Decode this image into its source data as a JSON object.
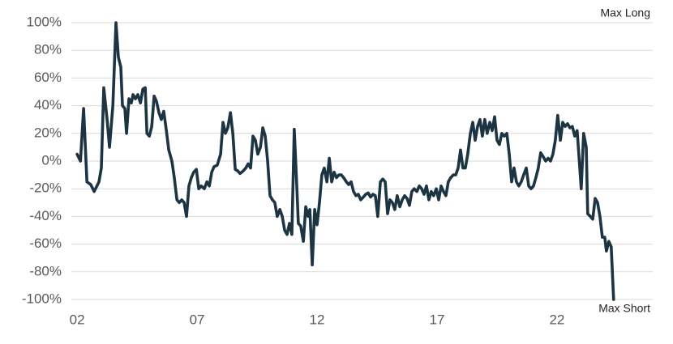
{
  "chart_data": {
    "type": "line",
    "color": "#1d3443",
    "grid": true,
    "annotations": [
      "Max Long",
      "Max Short"
    ],
    "xlim": [
      1.76,
      25.99
    ],
    "xticks": [
      {
        "value": 2,
        "label": "02"
      },
      {
        "value": 7,
        "label": "07"
      },
      12,
      17,
      22
    ],
    "ylim": [
      -100,
      100
    ],
    "yticks": [
      {
        "value": -100,
        "label": "-100%"
      },
      {
        "value": -80,
        "label": "-80%"
      },
      {
        "value": -60,
        "label": "-60%"
      },
      {
        "value": -40,
        "label": "-40%"
      },
      {
        "value": -20,
        "label": "-20%"
      },
      {
        "value": 0,
        "label": "0%"
      },
      {
        "value": 20,
        "label": "20%"
      },
      {
        "value": 40,
        "label": "40%"
      },
      {
        "value": 60,
        "label": "60%"
      },
      {
        "value": 80,
        "label": "80%"
      },
      {
        "value": 100,
        "label": "100%"
      }
    ],
    "x": [
      2.0,
      2.14,
      2.27,
      2.41,
      2.57,
      2.71,
      2.91,
      3.01,
      3.11,
      3.25,
      3.35,
      3.49,
      3.62,
      3.72,
      3.82,
      3.89,
      3.99,
      4.06,
      4.16,
      4.26,
      4.33,
      4.43,
      4.53,
      4.64,
      4.74,
      4.84,
      4.91,
      5.01,
      5.11,
      5.21,
      5.31,
      5.41,
      5.51,
      5.61,
      5.72,
      5.82,
      5.95,
      6.05,
      6.16,
      6.26,
      6.36,
      6.46,
      6.56,
      6.66,
      6.76,
      6.86,
      6.97,
      7.07,
      7.17,
      7.3,
      7.41,
      7.51,
      7.61,
      7.71,
      7.84,
      7.98,
      8.08,
      8.18,
      8.28,
      8.39,
      8.49,
      8.59,
      8.69,
      8.79,
      8.93,
      9.03,
      9.13,
      9.23,
      9.33,
      9.43,
      9.53,
      9.64,
      9.74,
      9.84,
      9.94,
      10.04,
      10.14,
      10.24,
      10.34,
      10.45,
      10.55,
      10.65,
      10.75,
      10.85,
      10.95,
      11.05,
      11.16,
      11.22,
      11.32,
      11.43,
      11.53,
      11.63,
      11.7,
      11.8,
      11.9,
      12.0,
      12.1,
      12.2,
      12.3,
      12.41,
      12.51,
      12.61,
      12.71,
      12.81,
      12.91,
      13.01,
      13.11,
      13.22,
      13.32,
      13.42,
      13.52,
      13.62,
      13.72,
      13.82,
      13.93,
      14.03,
      14.13,
      14.23,
      14.33,
      14.43,
      14.53,
      14.64,
      14.74,
      14.84,
      14.94,
      15.04,
      15.14,
      15.24,
      15.34,
      15.45,
      15.55,
      15.65,
      15.75,
      15.85,
      15.95,
      16.05,
      16.16,
      16.26,
      16.36,
      16.46,
      16.56,
      16.66,
      16.76,
      16.86,
      16.97,
      17.07,
      17.17,
      17.27,
      17.37,
      17.47,
      17.57,
      17.68,
      17.78,
      17.88,
      17.98,
      18.08,
      18.18,
      18.28,
      18.39,
      18.49,
      18.59,
      18.69,
      18.79,
      18.89,
      18.99,
      19.09,
      19.2,
      19.3,
      19.4,
      19.5,
      19.6,
      19.7,
      19.8,
      19.91,
      20.01,
      20.11,
      20.21,
      20.31,
      20.41,
      20.51,
      20.61,
      20.72,
      20.82,
      20.92,
      21.02,
      21.12,
      21.22,
      21.32,
      21.43,
      21.53,
      21.63,
      21.73,
      21.83,
      21.93,
      22.03,
      22.14,
      22.24,
      22.34,
      22.44,
      22.54,
      22.64,
      22.74,
      22.84,
      22.91,
      23.01,
      23.11,
      23.22,
      23.28,
      23.39,
      23.49,
      23.59,
      23.69,
      23.79,
      23.89,
      23.99,
      24.06,
      24.16,
      24.26,
      24.36
    ],
    "values": [
      5,
      0,
      38,
      -15,
      -17,
      -22,
      -15,
      -5,
      53,
      30,
      10,
      40,
      100,
      75,
      68,
      40,
      38,
      20,
      45,
      42,
      48,
      45,
      48,
      42,
      52,
      53,
      20,
      18,
      25,
      47,
      43,
      35,
      30,
      36,
      22,
      8,
      0,
      -12,
      -28,
      -30,
      -28,
      -30,
      -40,
      -18,
      -12,
      -8,
      -6,
      -20,
      -18,
      -20,
      -15,
      -18,
      -8,
      -4,
      -3,
      5,
      28,
      20,
      24,
      35,
      20,
      -6,
      -7,
      -9,
      -7,
      -5,
      -2,
      -5,
      18,
      15,
      5,
      10,
      24,
      18,
      0,
      -25,
      -28,
      -30,
      -40,
      -35,
      -40,
      -50,
      -53,
      -45,
      -53,
      23,
      -20,
      -45,
      -47,
      -58,
      -33,
      -40,
      -35,
      -75,
      -35,
      -46,
      -30,
      -10,
      -5,
      -15,
      2,
      -15,
      -8,
      -12,
      -10,
      -10,
      -12,
      -15,
      -17,
      -15,
      -22,
      -25,
      -24,
      -28,
      -26,
      -24,
      -23,
      -26,
      -24,
      -25,
      -40,
      -15,
      -13,
      -15,
      -38,
      -28,
      -30,
      -35,
      -25,
      -33,
      -28,
      -25,
      -27,
      -32,
      -22,
      -20,
      -22,
      -18,
      -20,
      -24,
      -18,
      -28,
      -22,
      -25,
      -20,
      -28,
      -18,
      -22,
      -25,
      -15,
      -12,
      -10,
      -10,
      -5,
      8,
      -5,
      -5,
      5,
      20,
      28,
      15,
      25,
      30,
      18,
      30,
      20,
      28,
      22,
      32,
      15,
      12,
      20,
      18,
      20,
      5,
      -15,
      -5,
      -15,
      -18,
      -15,
      -10,
      -5,
      -18,
      -20,
      -18,
      -12,
      -5,
      6,
      3,
      0,
      2,
      0,
      5,
      15,
      33,
      15,
      28,
      25,
      27,
      24,
      25,
      18,
      22,
      5,
      -20,
      20,
      10,
      -38,
      -40,
      -42,
      -27,
      -30,
      -40,
      -55,
      -55,
      -65,
      -58,
      -62,
      -100
    ]
  }
}
